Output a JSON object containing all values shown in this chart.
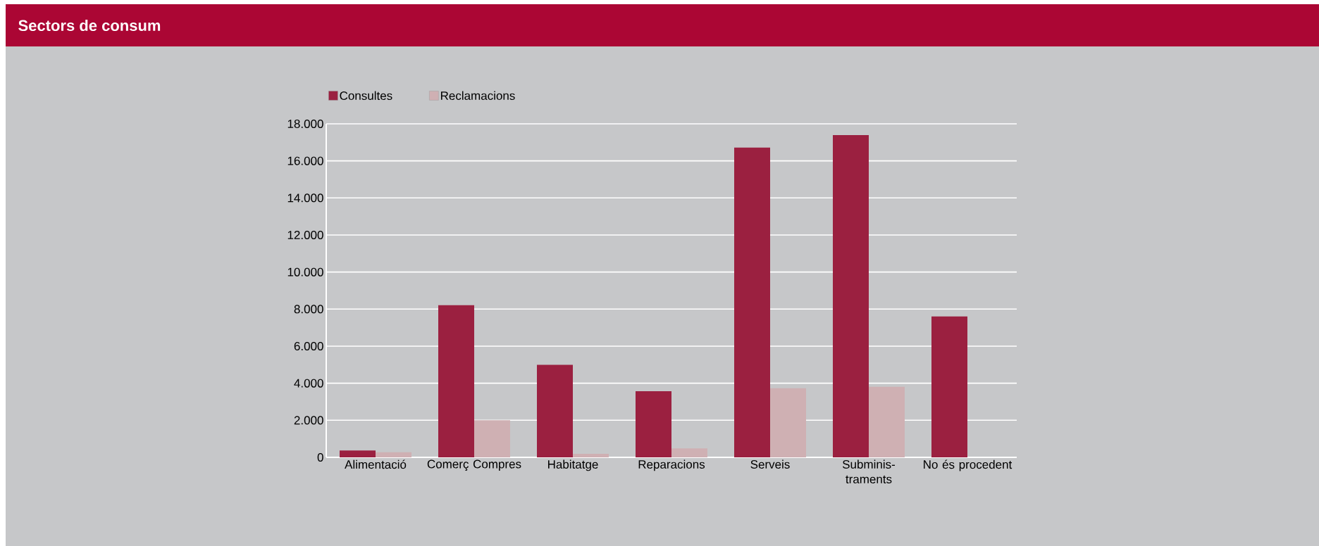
{
  "chart_data": {
    "type": "bar",
    "title": "Sectors de consum",
    "categories": [
      "Alimentació",
      "Comerç Compres",
      "Habitatge",
      "Reparacions",
      "Serveis",
      "Subminis-traments",
      "No és procedent"
    ],
    "series": [
      {
        "name": "Consultes",
        "color": "#9b2040",
        "values": [
          370,
          8210,
          4990,
          3570,
          16720,
          17390,
          7600
        ]
      },
      {
        "name": "Reclamacions",
        "color": "#cfb0b3",
        "values": [
          270,
          2000,
          190,
          480,
          3730,
          3810,
          null
        ]
      }
    ],
    "ylim": [
      0,
      18000
    ],
    "yticks": [
      {
        "value": 0,
        "label": "0"
      },
      {
        "value": 2000,
        "label": "2.000"
      },
      {
        "value": 4000,
        "label": "4.000"
      },
      {
        "value": 6000,
        "label": "6.000"
      },
      {
        "value": 8000,
        "label": "8.000"
      },
      {
        "value": 10000,
        "label": "10.000"
      },
      {
        "value": 12000,
        "label": "12.000"
      },
      {
        "value": 14000,
        "label": "14.000"
      },
      {
        "value": 16000,
        "label": "16.000"
      },
      {
        "value": 18000,
        "label": "18.000"
      }
    ],
    "grid": "y",
    "legend": "top left"
  }
}
